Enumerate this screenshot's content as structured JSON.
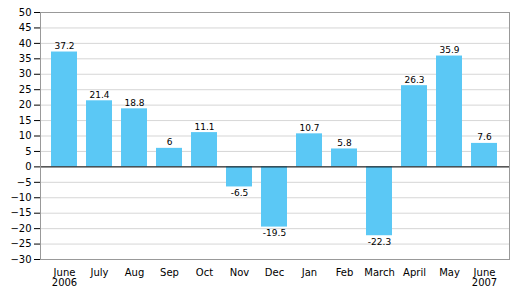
{
  "chart_data": {
    "type": "bar",
    "categories": [
      "June\n2006",
      "July",
      "Aug",
      "Sep",
      "Oct",
      "Nov",
      "Dec",
      "Jan",
      "Feb",
      "March",
      "April",
      "May",
      "June\n2007"
    ],
    "values": [
      37.2,
      21.4,
      18.8,
      6,
      11.1,
      -6.5,
      -19.5,
      10.7,
      5.8,
      -22.3,
      26.3,
      35.9,
      7.6
    ],
    "color": "#5BC8F5",
    "ylim": [
      -30,
      50
    ],
    "yticks": [
      -30,
      -25,
      -20,
      -15,
      -10,
      -5,
      0,
      5,
      10,
      15,
      20,
      25,
      30,
      35,
      40,
      45,
      50
    ],
    "grid": true,
    "data_labels": true
  }
}
